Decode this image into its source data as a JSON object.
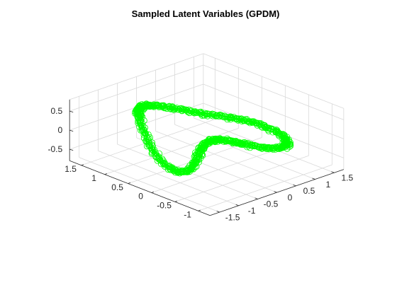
{
  "chart_data": {
    "type": "scatter",
    "title": "Sampled Latent Variables (GPDM)",
    "xlabel": "",
    "ylabel": "",
    "zlabel": "",
    "x_ticks": [
      "-1.5",
      "-1",
      "-0.5",
      "0",
      "0.5",
      "1",
      "1.5"
    ],
    "y_ticks": [
      "-1",
      "-0.5",
      "0",
      "0.5",
      "1",
      "1.5"
    ],
    "z_ticks": [
      "-0.5",
      "0",
      "0.5"
    ],
    "xlim": [
      -1.75,
      1.75
    ],
    "ylim": [
      -1.25,
      1.75
    ],
    "zlim": [
      -0.8,
      0.8
    ],
    "grid": true,
    "view": "3d",
    "marker": "circle",
    "series": [
      {
        "color": "#00ff00",
        "description_shape": "figure-eight loop traced repeatedly",
        "x": [
          -0.96,
          -0.78,
          -0.6,
          -0.42,
          -0.25,
          -0.08,
          0.08,
          0.24,
          0.4,
          0.56,
          0.72,
          0.86,
          0.98,
          1.08,
          1.15,
          1.18,
          1.15,
          1.06,
          0.92,
          0.76,
          0.6,
          0.46,
          0.36,
          0.28,
          0.2,
          0.1,
          -0.02,
          -0.16,
          -0.32,
          -0.5,
          -0.7,
          -0.9,
          -1.08,
          -1.24,
          -1.36,
          -1.42,
          -1.42,
          -1.36,
          -1.24,
          -1.1,
          -0.96
        ],
        "y": [
          0.9,
          1.05,
          1.15,
          1.2,
          1.18,
          1.1,
          0.98,
          0.84,
          0.68,
          0.52,
          0.36,
          0.2,
          0.04,
          -0.12,
          -0.28,
          -0.42,
          -0.54,
          -0.62,
          -0.66,
          -0.64,
          -0.56,
          -0.42,
          -0.28,
          -0.16,
          -0.06,
          0.02,
          0.06,
          0.06,
          0.02,
          -0.06,
          -0.16,
          -0.26,
          -0.32,
          -0.32,
          -0.24,
          -0.08,
          0.12,
          0.34,
          0.56,
          0.76,
          0.9
        ],
        "z": [
          0.58,
          0.55,
          0.5,
          0.45,
          0.4,
          0.35,
          0.3,
          0.25,
          0.2,
          0.18,
          0.15,
          0.12,
          0.08,
          0.02,
          -0.05,
          -0.12,
          -0.18,
          -0.22,
          -0.22,
          -0.2,
          -0.18,
          -0.15,
          -0.12,
          -0.1,
          -0.08,
          -0.06,
          -0.05,
          -0.05,
          -0.06,
          -0.08,
          -0.12,
          -0.18,
          -0.24,
          -0.28,
          -0.28,
          -0.2,
          -0.05,
          0.15,
          0.35,
          0.5,
          0.58
        ]
      }
    ]
  }
}
